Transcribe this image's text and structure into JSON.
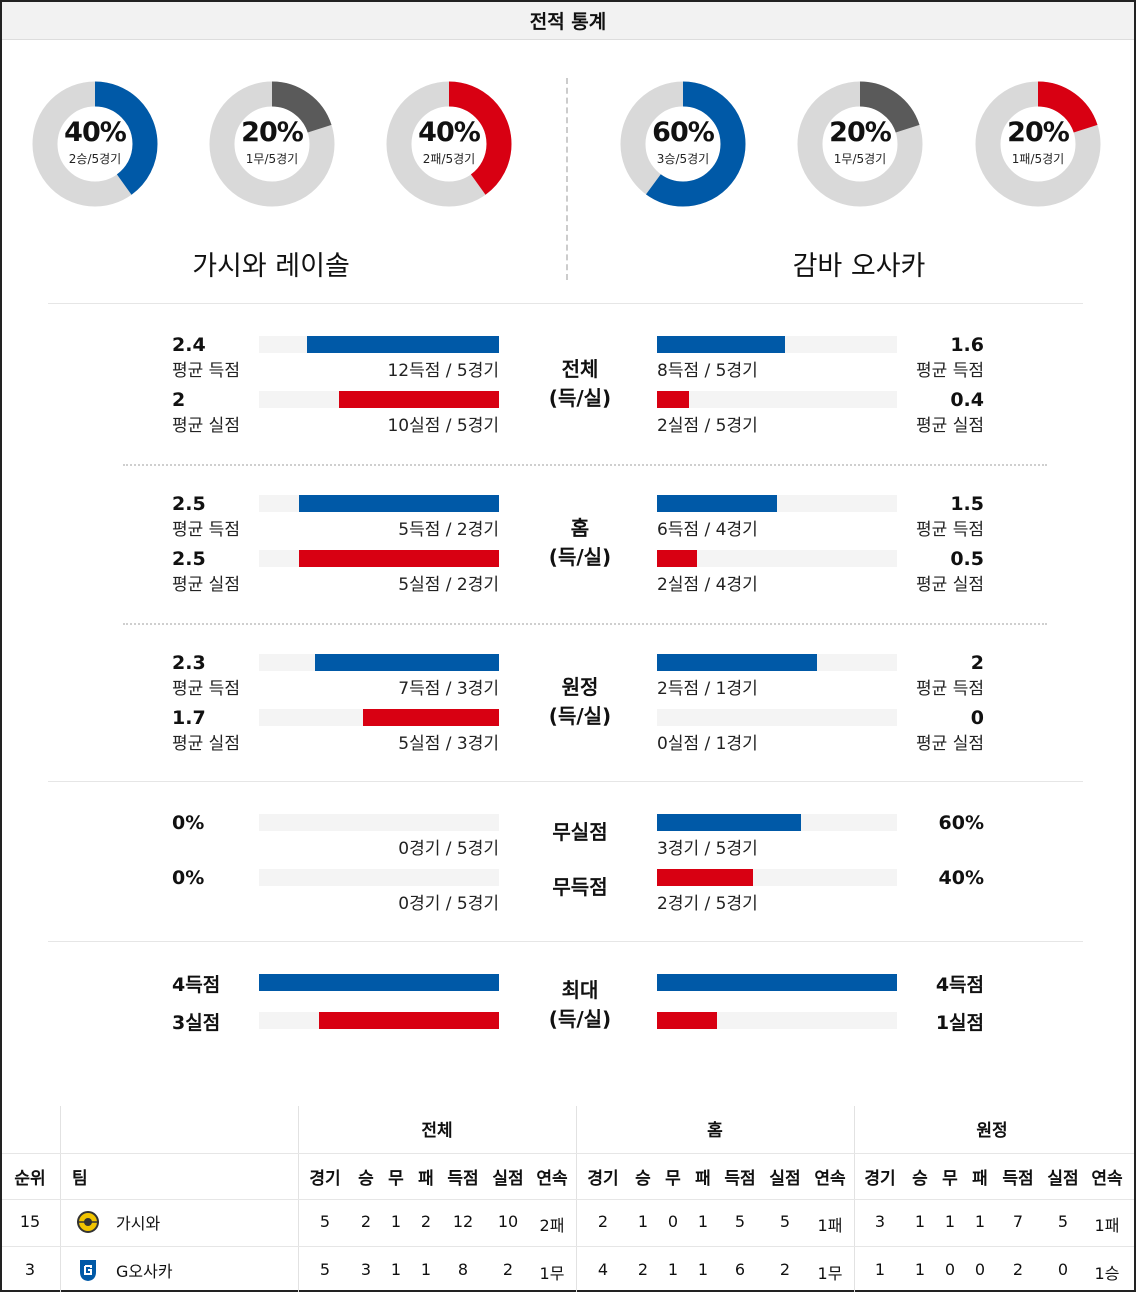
{
  "header": {
    "title": "전적 통계"
  },
  "donuts": {
    "left": [
      {
        "pct": "40%",
        "sub": "2승/5경기",
        "value": 0.4,
        "color": "#0059a7",
        "kind": "win"
      },
      {
        "pct": "20%",
        "sub": "1무/5경기",
        "value": 0.2,
        "color": "#5a5a5a",
        "kind": "draw"
      },
      {
        "pct": "40%",
        "sub": "2패/5경기",
        "value": 0.4,
        "color": "#d80012",
        "kind": "loss"
      }
    ],
    "right": [
      {
        "pct": "60%",
        "sub": "3승/5경기",
        "value": 0.6,
        "color": "#0059a7",
        "kind": "win"
      },
      {
        "pct": "20%",
        "sub": "1무/5경기",
        "value": 0.2,
        "color": "#5a5a5a",
        "kind": "draw"
      },
      {
        "pct": "20%",
        "sub": "1패/5경기",
        "value": 0.2,
        "color": "#d80012",
        "kind": "loss"
      }
    ]
  },
  "teams": {
    "left": "가시와 레이솔",
    "right": "감바 오사카"
  },
  "sections": [
    {
      "cat1": "전체",
      "cat2": "(득/실)",
      "rows": [
        {
          "left_num": "2.4",
          "left_lbl": "평균 득점",
          "left_fill": 0.8,
          "left_cap": "12득점 / 5경기",
          "right_num": "1.6",
          "right_lbl": "평균 득점",
          "right_fill": 0.533,
          "right_cap": "8득점 / 5경기",
          "color": "blue"
        },
        {
          "left_num": "2",
          "left_lbl": "평균 실점",
          "left_fill": 0.667,
          "left_cap": "10실점 / 5경기",
          "right_num": "0.4",
          "right_lbl": "평균 실점",
          "right_fill": 0.133,
          "right_cap": "2실점 / 5경기",
          "color": "red"
        }
      ]
    },
    {
      "cat1": "홈",
      "cat2": "(득/실)",
      "rows": [
        {
          "left_num": "2.5",
          "left_lbl": "평균 득점",
          "left_fill": 0.833,
          "left_cap": "5득점 / 2경기",
          "right_num": "1.5",
          "right_lbl": "평균 득점",
          "right_fill": 0.5,
          "right_cap": "6득점 / 4경기",
          "color": "blue"
        },
        {
          "left_num": "2.5",
          "left_lbl": "평균 실점",
          "left_fill": 0.833,
          "left_cap": "5실점 / 2경기",
          "right_num": "0.5",
          "right_lbl": "평균 실점",
          "right_fill": 0.167,
          "right_cap": "2실점 / 4경기",
          "color": "red"
        }
      ]
    },
    {
      "cat1": "원정",
      "cat2": "(득/실)",
      "rows": [
        {
          "left_num": "2.3",
          "left_lbl": "평균 득점",
          "left_fill": 0.767,
          "left_cap": "7득점 / 3경기",
          "right_num": "2",
          "right_lbl": "평균 득점",
          "right_fill": 0.667,
          "right_cap": "2득점 / 1경기",
          "color": "blue"
        },
        {
          "left_num": "1.7",
          "left_lbl": "평균 실점",
          "left_fill": 0.567,
          "left_cap": "5실점 / 3경기",
          "right_num": "0",
          "right_lbl": "평균 실점",
          "right_fill": 0,
          "right_cap": "0실점 / 1경기",
          "color": "red"
        }
      ]
    }
  ],
  "clean": {
    "rows": [
      {
        "cat": "무실점",
        "left_num": "0%",
        "left_fill": 0,
        "left_cap": "0경기 / 5경기",
        "right_num": "60%",
        "right_fill": 0.6,
        "right_cap": "3경기 / 5경기",
        "color": "blue"
      },
      {
        "cat": "무득점",
        "left_num": "0%",
        "left_fill": 0,
        "left_cap": "0경기 / 5경기",
        "right_num": "40%",
        "right_fill": 0.4,
        "right_cap": "2경기 / 5경기",
        "color": "red"
      }
    ]
  },
  "max": {
    "cat1": "최대",
    "cat2": "(득/실)",
    "rows": [
      {
        "left_num": "4득점",
        "left_fill": 1.0,
        "right_num": "4득점",
        "right_fill": 1.0,
        "color": "blue"
      },
      {
        "left_num": "3실점",
        "left_fill": 0.75,
        "right_num": "1실점",
        "right_fill": 0.25,
        "color": "red"
      }
    ]
  },
  "table": {
    "groups": [
      "전체",
      "홈",
      "원정"
    ],
    "head_rank": "순위",
    "head_team": "팀",
    "sub_heads": [
      "경기",
      "승",
      "무",
      "패",
      "득점",
      "실점",
      "연속"
    ],
    "rows": [
      {
        "rank": "15",
        "team": "가시와",
        "logo": "kashiwa-logo",
        "total": [
          "5",
          "2",
          "1",
          "2",
          "12",
          "10",
          "2패"
        ],
        "home": [
          "2",
          "1",
          "0",
          "1",
          "5",
          "5",
          "1패"
        ],
        "away": [
          "3",
          "1",
          "1",
          "1",
          "7",
          "5",
          "1패"
        ]
      },
      {
        "rank": "3",
        "team": "G오사카",
        "logo": "gamba-logo",
        "total": [
          "5",
          "3",
          "1",
          "1",
          "8",
          "2",
          "1무"
        ],
        "home": [
          "4",
          "2",
          "1",
          "1",
          "6",
          "2",
          "1무"
        ],
        "away": [
          "1",
          "1",
          "0",
          "0",
          "2",
          "0",
          "1승"
        ]
      }
    ]
  }
}
